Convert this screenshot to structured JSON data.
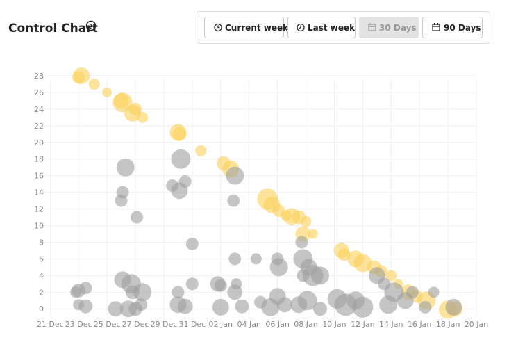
{
  "chart_data": {
    "type": "scatter",
    "title": "Control Chart",
    "xlim": [
      -0.6,
      30
    ],
    "ylim": [
      -0.9,
      27.5
    ],
    "grid": true,
    "xticks": [
      {
        "value": 0,
        "label": "21 Dec"
      },
      {
        "value": 2,
        "label": "23 Dec"
      },
      {
        "value": 4,
        "label": "25 Dec"
      },
      {
        "value": 6,
        "label": "27 Dec"
      },
      {
        "value": 8,
        "label": "29 Dec"
      },
      {
        "value": 10,
        "label": "31 Dec"
      },
      {
        "value": 12,
        "label": "02 Jan"
      },
      {
        "value": 14,
        "label": "04 Jan"
      },
      {
        "value": 16,
        "label": "06 Jan"
      },
      {
        "value": 18,
        "label": "08 Jan"
      },
      {
        "value": 20,
        "label": "10 Jan"
      },
      {
        "value": 22,
        "label": "12 Jan"
      },
      {
        "value": 24,
        "label": "14 Jan"
      },
      {
        "value": 26,
        "label": "16 Jan"
      },
      {
        "value": 28,
        "label": "18 Jan"
      },
      {
        "value": 30,
        "label": "20 Jan"
      }
    ],
    "yticks": [
      0,
      2,
      4,
      6,
      8,
      10,
      12,
      14,
      16,
      18,
      20,
      22,
      24,
      26,
      28
    ],
    "series": [
      {
        "color": "#fcd15a",
        "x": [
          2.2,
          2,
          3.1,
          4,
          5,
          5.1,
          6,
          5.8,
          6.5,
          9,
          9.1,
          10.6,
          12.2,
          12.7,
          15.3,
          15.6,
          16.1,
          16.6,
          17,
          17.5,
          18,
          17.8,
          18.5,
          20.5,
          20.7,
          21.5,
          22,
          22.8,
          23.3,
          24,
          24.5,
          25.2,
          25.8,
          26.5,
          28,
          28.5
        ],
        "values": [
          28,
          27.8,
          27,
          26,
          25,
          24.8,
          24,
          23.5,
          23,
          21.2,
          21,
          19,
          17.5,
          16.8,
          13.2,
          12.5,
          11.8,
          11.2,
          11.1,
          11,
          10.5,
          9,
          9,
          7,
          6.5,
          6,
          5.5,
          5,
          4.5,
          4,
          3,
          2,
          1.5,
          1,
          -0.1,
          0
        ],
        "sizes": [
          12,
          9,
          8,
          7,
          11,
          14,
          9,
          12,
          8,
          12,
          10,
          8,
          10,
          12,
          15,
          12,
          9,
          8,
          12,
          10,
          8,
          11,
          7,
          11,
          9,
          12,
          13,
          10,
          9,
          8,
          7,
          11,
          9,
          13,
          13,
          11
        ]
      },
      {
        "color": "#9e9e9e",
        "x": [
          2,
          1.8,
          2.5,
          2,
          2.5,
          4.6,
          5.1,
          5.7,
          5.8,
          6.5,
          5.5,
          6,
          6.4,
          5.3,
          5.1,
          5,
          6.1,
          9.2,
          8.6,
          9.1,
          9.5,
          10,
          10,
          9,
          9,
          9.5,
          11.8,
          12,
          13,
          12.9,
          13,
          13.1,
          13,
          12,
          13.5,
          14.5,
          14.8,
          16,
          16.1,
          16,
          15.5,
          16.5,
          17.7,
          17.8,
          18.2,
          17.8,
          18.5,
          19,
          18.1,
          17.5,
          19,
          20.2,
          20.8,
          21.5,
          22,
          23,
          23.5,
          24.2,
          23.8,
          25,
          25.5,
          26.4,
          27,
          28.4
        ],
        "values": [
          2.2,
          2,
          2.5,
          0.5,
          0.3,
          0,
          3.5,
          3,
          2,
          2,
          0,
          0,
          0.5,
          17,
          14,
          13,
          11,
          18,
          14.8,
          14.2,
          15.3,
          7.8,
          3,
          2,
          0.5,
          0.3,
          3,
          2.8,
          16,
          13,
          6,
          3,
          2,
          0.2,
          0.3,
          6,
          0.8,
          6,
          5,
          1.5,
          0.2,
          0.5,
          8,
          6,
          5,
          4,
          4,
          4,
          1,
          0.5,
          0,
          1.2,
          0.5,
          1,
          0.2,
          4,
          3,
          2,
          0.5,
          1,
          2,
          0.2,
          2,
          0.2
        ],
        "sizes": [
          10,
          8,
          9,
          8,
          10,
          11,
          12,
          14,
          10,
          13,
          12,
          10,
          9,
          13,
          9,
          9,
          9,
          14,
          9,
          12,
          9,
          9,
          9,
          9,
          12,
          11,
          11,
          9,
          13,
          9,
          9,
          8,
          11,
          12,
          10,
          8,
          9,
          9,
          13,
          12,
          13,
          11,
          9,
          14,
          12,
          9,
          15,
          13,
          14,
          12,
          10,
          14,
          16,
          13,
          15,
          12,
          9,
          14,
          13,
          12,
          9,
          9,
          8,
          12
        ]
      }
    ]
  },
  "toolbar": {
    "buttons": [
      "Current week",
      "Last week",
      "30 Days",
      "90 Days"
    ]
  }
}
